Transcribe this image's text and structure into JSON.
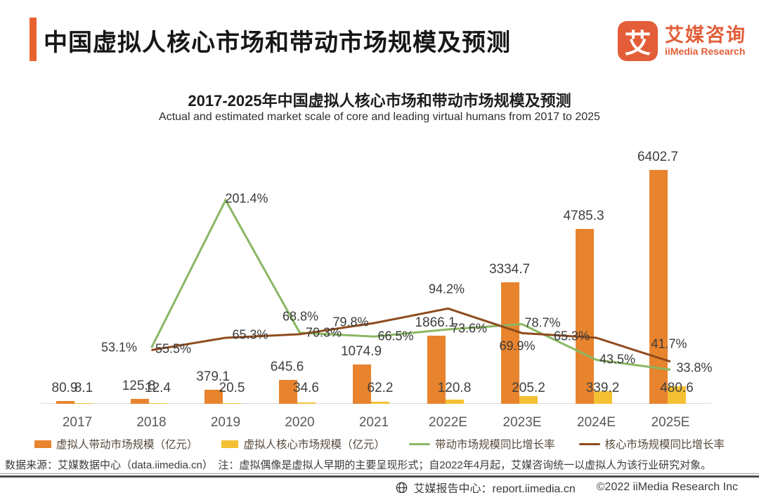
{
  "header": {
    "title": "中国虚拟人核心市场和带动市场规模及预测",
    "logo_glyph": "艾",
    "logo_cn": "艾媒咨询",
    "logo_en": "iiMedia Research"
  },
  "chart": {
    "title": "2017-2025年中国虚拟人核心市场和带动市场规模及预测",
    "subtitle": "Actual and estimated market scale of core and leading virtual humans from 2017 to 2025"
  },
  "chart_data": {
    "type": "bar",
    "categories": [
      "2017",
      "2018",
      "2019",
      "2020",
      "2021",
      "2022E",
      "2023E",
      "2024E",
      "2025E"
    ],
    "series": [
      {
        "name": "虚拟人带动市场规模（亿元）",
        "type": "bar",
        "color": "#e8832e",
        "values": [
          80.9,
          125.8,
          379.1,
          645.6,
          1074.9,
          1866.1,
          3334.7,
          4785.3,
          6402.7
        ]
      },
      {
        "name": "虚拟人核心市场规模（亿元）",
        "type": "bar",
        "color": "#f4c134",
        "values": [
          8.1,
          12.4,
          20.5,
          34.6,
          62.2,
          120.8,
          205.2,
          339.2,
          480.6
        ]
      },
      {
        "name": "带动市场规模同比增长率",
        "type": "line",
        "color": "#8ab763",
        "unit": "%",
        "values": [
          null,
          55.5,
          201.4,
          70.3,
          66.5,
          73.6,
          78.7,
          43.5,
          33.8
        ]
      },
      {
        "name": "核心市场规模同比增长率",
        "type": "line",
        "color": "#8f4b1e",
        "unit": "%",
        "values": [
          null,
          53.1,
          65.3,
          68.8,
          79.8,
          94.2,
          69.9,
          65.3,
          41.7
        ]
      }
    ],
    "ylim_primary": [
      0,
      7000
    ],
    "ylim_secondary_pct": [
      0,
      220
    ],
    "grid": false,
    "legend_position": "bottom",
    "value_labels": true
  },
  "footer": {
    "note": "数据来源：艾媒数据中心（data.iimedia.cn）　注：虚拟偶像是虚拟人早期的主要呈现形式；自2022年4月起，艾媒咨询统一以虚拟人为该行业研究对象。",
    "credit_site": "艾媒报告中心：report.iimedia.cn",
    "credit_copy": "©2022 iiMedia Research Inc"
  },
  "colors": {
    "brand_orange": "#e25d38",
    "accent_bar": "#e9632e",
    "bar_driven": "#e8832e",
    "bar_core": "#f4c134",
    "line_driven_growth": "#8ab763",
    "line_core_growth": "#8f4b1e",
    "axis_line": "#d9d9d9"
  }
}
